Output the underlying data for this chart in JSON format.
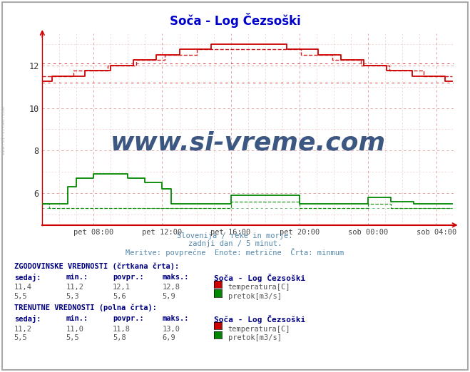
{
  "title": "Soča - Log Čezsoški",
  "title_color": "#0000cc",
  "bg_color": "#ffffff",
  "plot_bg_color": "#ffffff",
  "temp_color": "#cc0000",
  "flow_color": "#008800",
  "ylim": [
    4.5,
    13.5
  ],
  "xlim": [
    0,
    288
  ],
  "yticks": [
    6,
    8,
    10,
    12
  ],
  "xtick_labels": [
    "pet 08:00",
    "pet 12:00",
    "pet 16:00",
    "pet 20:00",
    "sob 00:00",
    "sob 04:00"
  ],
  "xtick_positions": [
    36,
    84,
    132,
    180,
    228,
    276
  ],
  "subtitle_lines": [
    "Slovenija / reke in morje.",
    "zadnji dan / 5 minut.",
    "Meritve: povprečne  Enote: metrične  Črta: minmum"
  ],
  "watermark_text": "www.si-vreme.com",
  "watermark_color": "#1a3a6b",
  "watermark_alpha": 0.85,
  "temp_min_hist": 11.2,
  "temp_max_hist": 12.8,
  "temp_avg_hist": 12.1,
  "temp_sedaj_hist": 11.4,
  "flow_min_hist": 5.3,
  "flow_max_hist": 5.9,
  "flow_avg_hist": 5.6,
  "flow_sedaj_hist": 5.5,
  "temp_min_curr": 11.0,
  "temp_max_curr": 13.0,
  "temp_avg_curr": 11.8,
  "temp_sedaj_curr": 11.2,
  "flow_min_curr": 5.5,
  "flow_max_curr": 6.9,
  "flow_avg_curr": 5.8,
  "flow_sedaj_curr": 5.5,
  "station_name": "Soča - Log Čezsoški"
}
